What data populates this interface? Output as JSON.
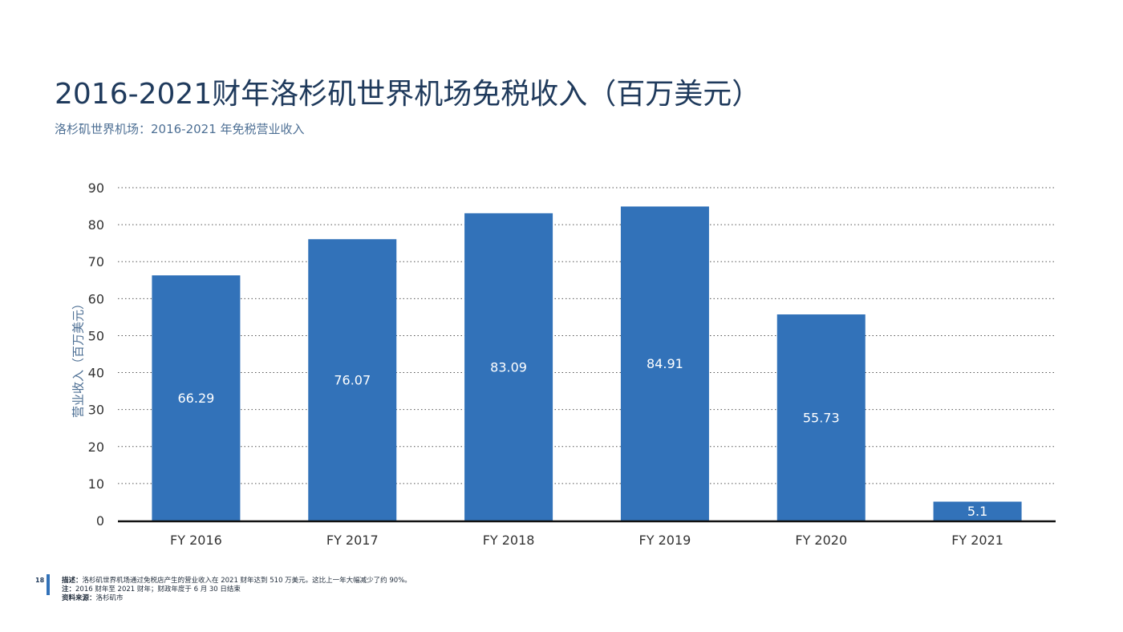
{
  "title": "2016-2021财年洛杉矶世界机场免税收入（百万美元）",
  "subtitle": "洛杉矶世界机场：2016-2021 年免税营业收入",
  "page_number": "18",
  "footer": {
    "description_label": "描述：",
    "description_text": "洛杉矶世界机场通过免税店产生的营业收入在 2021 财年达到 510 万美元。这比上一年大幅减少了约 90%。",
    "note_label": "注：",
    "note_text": "2016 财年至 2021 财年；财政年度于 6 月 30 日结束",
    "source_label": "资料来源：",
    "source_text": "洛杉矶市"
  },
  "colors": {
    "bar": "#3272b9",
    "grid": "#555555",
    "axis": "#111111"
  },
  "chart_data": {
    "type": "bar",
    "categories": [
      "FY 2016",
      "FY 2017",
      "FY 2018",
      "FY 2019",
      "FY 2020",
      "FY 2021"
    ],
    "values": [
      66.29,
      76.07,
      83.09,
      84.91,
      55.73,
      5.1
    ],
    "data_labels": [
      "66.29",
      "76.07",
      "83.09",
      "84.91",
      "55.73",
      "5.1"
    ],
    "ylabel": "营业收入（百万美元）",
    "ylim": [
      0,
      90
    ],
    "yticks": [
      0,
      10,
      20,
      30,
      40,
      50,
      60,
      70,
      80,
      90
    ],
    "grid": true,
    "grid_style": "dotted"
  }
}
